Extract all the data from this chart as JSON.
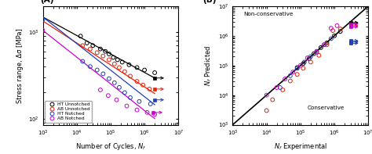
{
  "panel_A": {
    "xlabel": "Number of Cycles, $N_f$",
    "ylabel": "Stress range, Δσ [MPa]",
    "xlim_lo": 1000,
    "xlim_hi": 10000000,
    "ylim_lo": 85,
    "ylim_hi": 2000,
    "series": [
      {
        "name": "HT Unnotched",
        "color": "black",
        "scatter_x": [
          13000,
          20000,
          30000,
          50000,
          70000,
          90000,
          120000,
          160000,
          220000,
          350000,
          600000,
          1000000,
          2000000
        ],
        "scatter_y": [
          900,
          750,
          700,
          640,
          600,
          560,
          510,
          480,
          450,
          420,
          390,
          365,
          340
        ],
        "line_x": [
          1000,
          2000000
        ],
        "line_y": [
          1500,
          295
        ],
        "runout_x": 2000000,
        "runout_y": 295
      },
      {
        "name": "AB Unnotched",
        "color": "#e8230a",
        "scatter_x": [
          15000,
          25000,
          40000,
          60000,
          90000,
          130000,
          180000,
          260000,
          380000,
          600000,
          900000,
          1400000
        ],
        "scatter_y": [
          700,
          640,
          580,
          530,
          480,
          430,
          390,
          350,
          310,
          270,
          245,
          220
        ],
        "line_x": [
          1000,
          2000000
        ],
        "line_y": [
          1350,
          195
        ],
        "runout_x": 2000000,
        "runout_y": 220
      },
      {
        "name": "HT Notched",
        "color": "#1f3fb5",
        "scatter_x": [
          1000,
          15000,
          25000,
          40000,
          60000,
          90000,
          130000,
          180000,
          260000,
          380000,
          700000,
          1500000
        ],
        "scatter_y": [
          1400,
          460,
          400,
          365,
          330,
          290,
          260,
          230,
          200,
          175,
          158,
          148
        ],
        "line_x": [
          1000,
          2000000
        ],
        "line_y": [
          1500,
          145
        ],
        "runout_x": 2000000,
        "runout_y": 165
      },
      {
        "name": "AB Notched",
        "color": "#cc00cc",
        "scatter_x": [
          1000,
          50000,
          85000,
          150000,
          300000,
          600000,
          1200000,
          2000000
        ],
        "scatter_y": [
          1050,
          215,
          185,
          165,
          140,
          126,
          118,
          112
        ],
        "line_x": [
          1000,
          2000000
        ],
        "line_y": [
          1050,
          100
        ],
        "runout_x": 1800000,
        "runout_y": 118
      }
    ]
  },
  "panel_B": {
    "xlabel": "$N_f$ Experimental",
    "ylabel": "$N_f$ Predicted",
    "xlim_lo": 1000,
    "xlim_hi": 10000000,
    "ylim_lo": 1000,
    "ylim_hi": 10000000,
    "label_nc": "Non-conservative",
    "label_c": "Conservative",
    "series": [
      {
        "name": "HT Unnotched",
        "color": "black",
        "exp_x": [
          80000,
          120000,
          180000,
          250000,
          400000,
          600000,
          1000000,
          1500000
        ],
        "pred_y": [
          85000,
          115000,
          170000,
          250000,
          400000,
          580000,
          1000000,
          1400000
        ],
        "runout_exp": [
          3000000,
          3000000
        ],
        "runout_pred": [
          2800000,
          2600000
        ]
      },
      {
        "name": "AB Unnotched",
        "color": "#e8230a",
        "exp_x": [
          10000,
          15000,
          30000,
          50000,
          80000,
          120000,
          200000,
          350000,
          600000,
          900000,
          1500000
        ],
        "pred_y": [
          3000,
          7000,
          15000,
          30000,
          50000,
          80000,
          130000,
          220000,
          500000,
          1500000,
          1700000
        ],
        "runout_exp": [
          3000000
        ],
        "runout_pred": [
          2200000
        ]
      },
      {
        "name": "HT Notched",
        "color": "#1f3fb5",
        "exp_x": [
          25000,
          50000,
          80000,
          130000,
          200000,
          300000,
          500000,
          800000
        ],
        "pred_y": [
          18000,
          45000,
          80000,
          130000,
          200000,
          300000,
          500000,
          800000
        ],
        "runout_exp": [
          3000000,
          3000000,
          3000000
        ],
        "runout_pred": [
          680000,
          620000,
          560000
        ]
      },
      {
        "name": "AB Notched",
        "color": "#cc00cc",
        "exp_x": [
          10000,
          20000,
          35000,
          60000,
          100000,
          160000,
          300000,
          500000,
          800000,
          1200000
        ],
        "pred_y": [
          10000,
          18000,
          35000,
          60000,
          100000,
          180000,
          280000,
          500000,
          1800000,
          2200000
        ],
        "runout_exp": [
          3000000,
          3000000
        ],
        "runout_pred": [
          2500000,
          2000000
        ]
      }
    ]
  }
}
